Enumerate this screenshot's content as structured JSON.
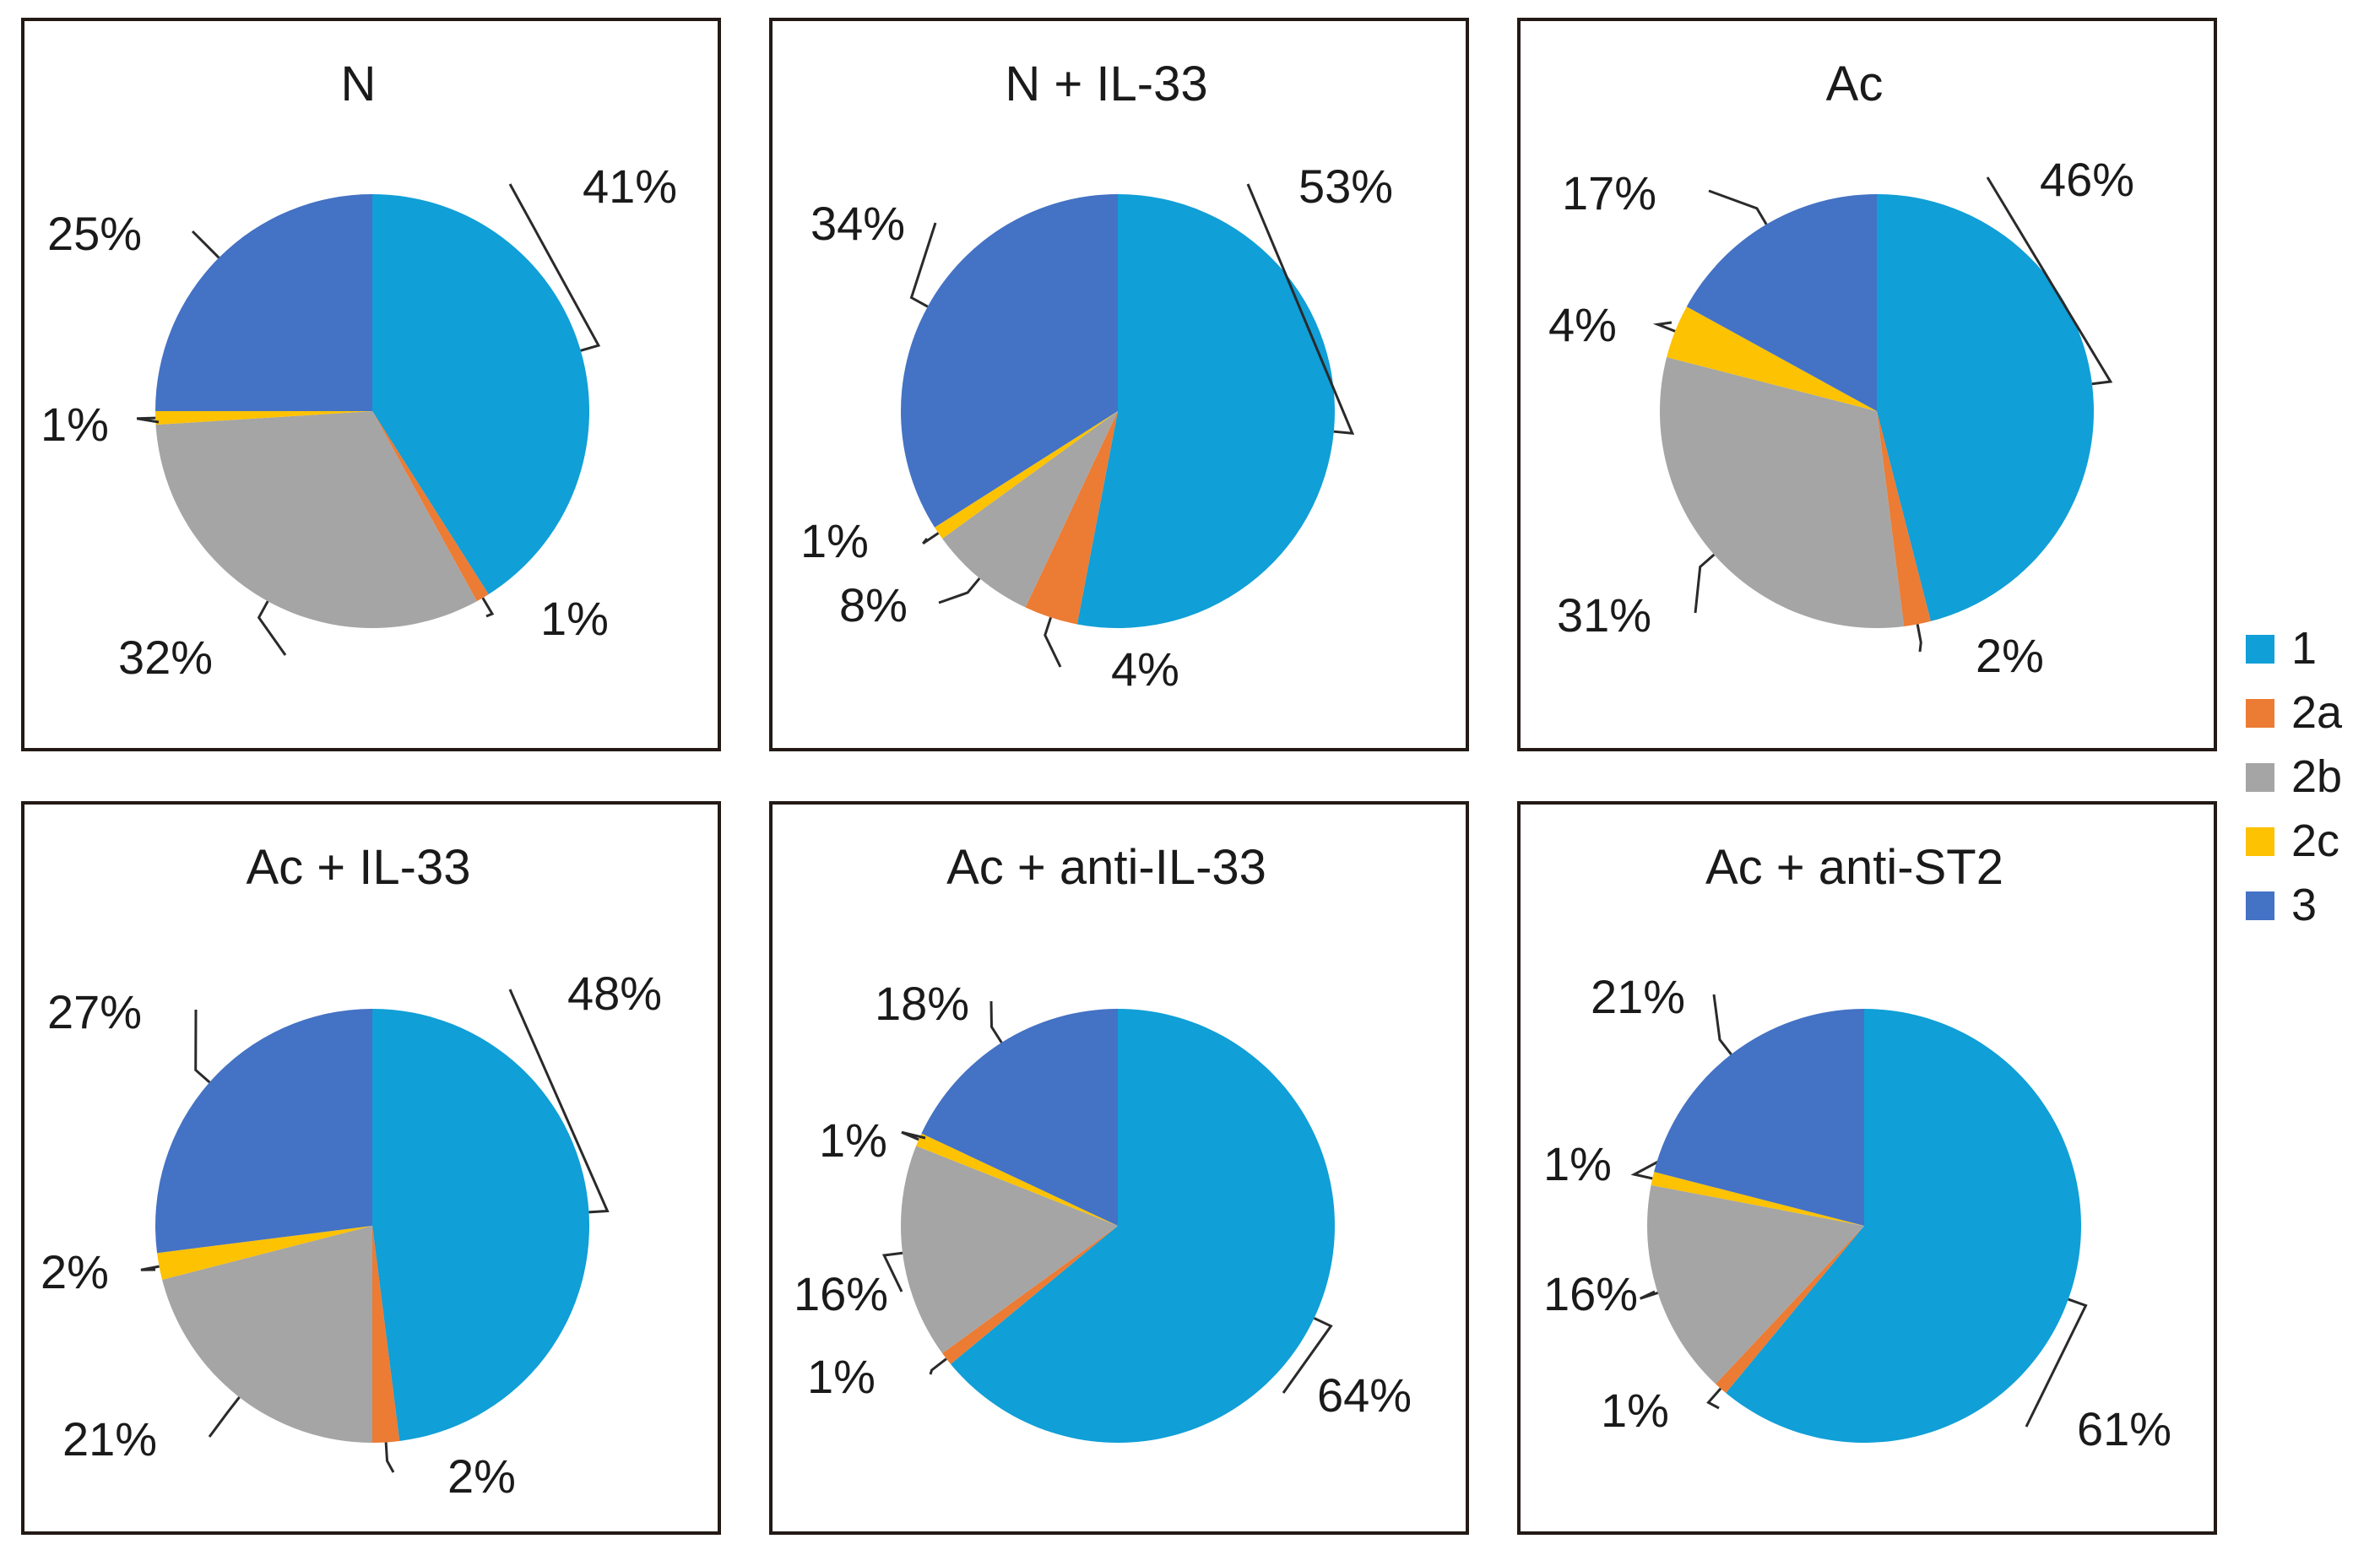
{
  "chart_data": [
    {
      "type": "pie",
      "title": "N",
      "slices": [
        {
          "category": "1",
          "value": 41,
          "label": "41%"
        },
        {
          "category": "2a",
          "value": 1,
          "label": "1%"
        },
        {
          "category": "2b",
          "value": 32,
          "label": "32%"
        },
        {
          "category": "2c",
          "value": 1,
          "label": "1%"
        },
        {
          "category": "3",
          "value": 25,
          "label": "25%"
        }
      ]
    },
    {
      "type": "pie",
      "title": "N + IL-33",
      "slices": [
        {
          "category": "1",
          "value": 53,
          "label": "53%"
        },
        {
          "category": "2a",
          "value": 4,
          "label": "4%"
        },
        {
          "category": "2b",
          "value": 8,
          "label": "8%"
        },
        {
          "category": "2c",
          "value": 1,
          "label": "1%"
        },
        {
          "category": "3",
          "value": 34,
          "label": "34%"
        }
      ]
    },
    {
      "type": "pie",
      "title": "Ac",
      "slices": [
        {
          "category": "1",
          "value": 46,
          "label": "46%"
        },
        {
          "category": "2a",
          "value": 2,
          "label": "2%"
        },
        {
          "category": "2b",
          "value": 31,
          "label": "31%"
        },
        {
          "category": "2c",
          "value": 4,
          "label": "4%"
        },
        {
          "category": "3",
          "value": 17,
          "label": "17%"
        }
      ]
    },
    {
      "type": "pie",
      "title": "Ac + IL-33",
      "slices": [
        {
          "category": "1",
          "value": 48,
          "label": "48%"
        },
        {
          "category": "2a",
          "value": 2,
          "label": "2%"
        },
        {
          "category": "2b",
          "value": 21,
          "label": "21%"
        },
        {
          "category": "2c",
          "value": 2,
          "label": "2%"
        },
        {
          "category": "3",
          "value": 27,
          "label": "27%"
        }
      ]
    },
    {
      "type": "pie",
      "title": "Ac + anti-IL-33",
      "slices": [
        {
          "category": "1",
          "value": 64,
          "label": "64%"
        },
        {
          "category": "2a",
          "value": 1,
          "label": "1%"
        },
        {
          "category": "2b",
          "value": 16,
          "label": "16%"
        },
        {
          "category": "2c",
          "value": 1,
          "label": "1%"
        },
        {
          "category": "3",
          "value": 18,
          "label": "18%"
        }
      ]
    },
    {
      "type": "pie",
      "title": "Ac + anti-ST2",
      "slices": [
        {
          "category": "1",
          "value": 61,
          "label": "61%"
        },
        {
          "category": "2a",
          "value": 1,
          "label": "1%"
        },
        {
          "category": "2b",
          "value": 16,
          "label": "16%"
        },
        {
          "category": "2c",
          "value": 1,
          "label": "1%"
        },
        {
          "category": "3",
          "value": 21,
          "label": "21%"
        }
      ]
    }
  ],
  "legend": [
    {
      "category": "1",
      "label": "1",
      "color": "#109fd7"
    },
    {
      "category": "2a",
      "label": "2a",
      "color": "#ec7b33"
    },
    {
      "category": "2b",
      "label": "2b",
      "color": "#a5a5a5"
    },
    {
      "category": "2c",
      "label": "2c",
      "color": "#fdc202"
    },
    {
      "category": "3",
      "label": "3",
      "color": "#4472c4"
    }
  ]
}
